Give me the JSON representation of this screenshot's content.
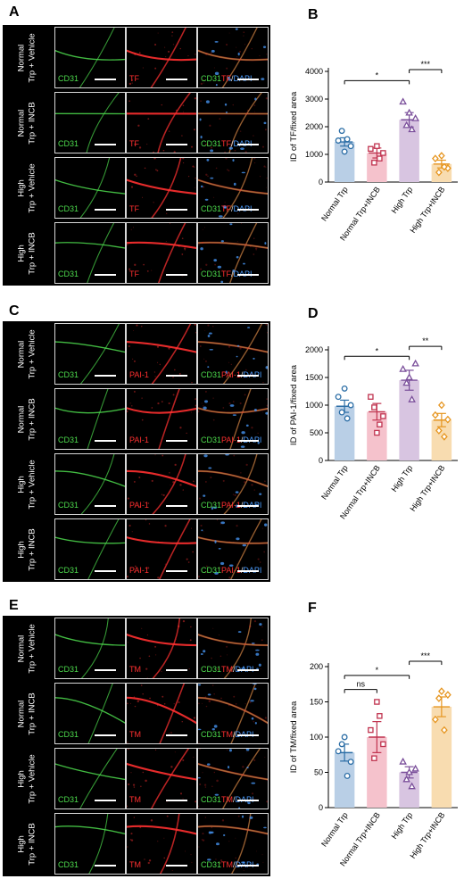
{
  "panels": {
    "A": {
      "letter": "A",
      "stain": "TF"
    },
    "B": {
      "letter": "B"
    },
    "C": {
      "letter": "C",
      "stain": "PAI-1"
    },
    "D": {
      "letter": "D"
    },
    "E": {
      "letter": "E",
      "stain": "TM"
    },
    "F": {
      "letter": "F"
    }
  },
  "row_labels": [
    "Normal Trp + Vehicle",
    "Normal Trp + INCB",
    "High Trp + Vehicle",
    "High Trp + INCB"
  ],
  "row_labels_lines": [
    [
      "Normal",
      "Trp + Vehicle"
    ],
    [
      "Normal",
      "Trp + INCB"
    ],
    [
      "High",
      "Trp + Vehicle"
    ],
    [
      "High",
      "Trp + INCB"
    ]
  ],
  "channel_labels": {
    "cd31": "CD31",
    "slash": "/",
    "dapi": "DAPI"
  },
  "colors": {
    "cd31": "#4ddc4d",
    "marker": "#ff3030",
    "dapi": "#4a9cff"
  },
  "chart_data": [
    {
      "type": "bar",
      "panel": "B",
      "categories": [
        "Normal Trp",
        "Normal Trp+INCB",
        "High Trp",
        "High Trp+INCB"
      ],
      "values": [
        1450,
        1050,
        2250,
        650
      ],
      "errors": [
        150,
        180,
        260,
        140
      ],
      "points": [
        [
          1500,
          1300,
          1850,
          1550,
          1100
        ],
        [
          1200,
          1050,
          700,
          850,
          1300
        ],
        [
          2900,
          2300,
          2050,
          1900,
          2500
        ],
        [
          850,
          500,
          350,
          550,
          950
        ]
      ],
      "ylabel": "ID of TF/fixed area",
      "ylim": [
        0,
        4000
      ],
      "yticks": [
        0,
        1000,
        2000,
        3000,
        4000
      ],
      "colors": [
        "#b9cfe6",
        "#f5c2cc",
        "#d8c5e1",
        "#f8dcb0"
      ],
      "edge_colors": [
        "#2c6ea6",
        "#c0334f",
        "#7a4e9a",
        "#e6951f"
      ],
      "markers": [
        "circle",
        "square",
        "triangle",
        "diamond"
      ],
      "significance": [
        {
          "from": 0,
          "to": 2,
          "label": "*",
          "y": 3600
        },
        {
          "from": 2,
          "to": 3,
          "label": "***",
          "y": 4000
        }
      ]
    },
    {
      "type": "bar",
      "panel": "D",
      "categories": [
        "Normal Trp",
        "Normal Trp+INCB",
        "High Trp",
        "High Trp+INCB"
      ],
      "values": [
        980,
        880,
        1450,
        730
      ],
      "errors": [
        110,
        150,
        180,
        120
      ],
      "points": [
        [
          1150,
          1000,
          870,
          760,
          1300
        ],
        [
          1150,
          800,
          960,
          650,
          500
        ],
        [
          1650,
          1750,
          1400,
          1100,
          1500
        ],
        [
          820,
          740,
          540,
          430,
          1000
        ]
      ],
      "ylabel": "ID of PAI-1/fixed area",
      "ylim": [
        0,
        2000
      ],
      "yticks": [
        0,
        500,
        1000,
        1500,
        2000
      ],
      "colors": [
        "#b9cfe6",
        "#f5c2cc",
        "#d8c5e1",
        "#f8dcb0"
      ],
      "edge_colors": [
        "#2c6ea6",
        "#c0334f",
        "#7a4e9a",
        "#e6951f"
      ],
      "markers": [
        "circle",
        "square",
        "triangle",
        "diamond"
      ],
      "significance": [
        {
          "from": 0,
          "to": 2,
          "label": "*",
          "y": 1850
        },
        {
          "from": 2,
          "to": 3,
          "label": "**",
          "y": 2030
        }
      ]
    },
    {
      "type": "bar",
      "panel": "F",
      "categories": [
        "Normal Trp",
        "Normal Trp+INCB",
        "High Trp",
        "High Trp+INCB"
      ],
      "values": [
        78,
        100,
        50,
        143
      ],
      "errors": [
        12,
        22,
        8,
        14
      ],
      "points": [
        [
          80,
          65,
          90,
          45,
          100
        ],
        [
          110,
          90,
          70,
          130,
          150
        ],
        [
          65,
          55,
          40,
          30,
          50
        ],
        [
          125,
          160,
          155,
          110,
          165
        ]
      ],
      "ylabel": "ID of TM/fixed area",
      "ylim": [
        0,
        200
      ],
      "yticks": [
        0,
        50,
        100,
        150,
        200
      ],
      "colors": [
        "#b9cfe6",
        "#f5c2cc",
        "#d8c5e1",
        "#f8dcb0"
      ],
      "edge_colors": [
        "#2c6ea6",
        "#c0334f",
        "#7a4e9a",
        "#e6951f"
      ],
      "markers": [
        "circle",
        "square",
        "triangle",
        "diamond"
      ],
      "significance": [
        {
          "from": 0,
          "to": 1,
          "label": "ns",
          "y": 165
        },
        {
          "from": 0,
          "to": 2,
          "label": "*",
          "y": 185
        },
        {
          "from": 2,
          "to": 3,
          "label": "***",
          "y": 205
        }
      ]
    }
  ]
}
